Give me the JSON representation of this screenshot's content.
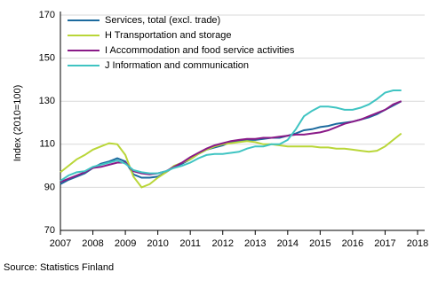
{
  "chart_data": {
    "type": "line",
    "y_label": "Index (2010=100)",
    "source": "Source: Statistics Finland",
    "x": [
      2007,
      2007.25,
      2007.5,
      2007.75,
      2008,
      2008.25,
      2008.5,
      2008.75,
      2009,
      2009.25,
      2009.5,
      2009.75,
      2010,
      2010.25,
      2010.5,
      2010.75,
      2011,
      2011.25,
      2011.5,
      2011.75,
      2012,
      2012.25,
      2012.5,
      2012.75,
      2013,
      2013.25,
      2013.5,
      2013.75,
      2014,
      2014.25,
      2014.5,
      2014.75,
      2015,
      2015.25,
      2015.5,
      2015.75,
      2016,
      2016.25,
      2016.5,
      2016.75,
      2017,
      2017.25,
      2017.5
    ],
    "series": [
      {
        "name": "Services, total (excl. trade)",
        "color": "#1c6a9e",
        "values": [
          91.5,
          93.5,
          95,
          96.5,
          99,
          101,
          102,
          103.5,
          102,
          96,
          94.5,
          94.5,
          95,
          97,
          99.5,
          101,
          103,
          105.5,
          107.5,
          108.5,
          109.5,
          111,
          111.5,
          112,
          112,
          112.5,
          113,
          113,
          114,
          115,
          116.5,
          117,
          118,
          118.5,
          119.5,
          120,
          120.5,
          121.5,
          122.5,
          124,
          126,
          128,
          130
        ]
      },
      {
        "name": "H Transportation and storage",
        "color": "#b9d638",
        "values": [
          97,
          100,
          103,
          105,
          107.5,
          109,
          110.5,
          110,
          105,
          95,
          90,
          91.5,
          94.5,
          97,
          100,
          101.5,
          103,
          105.5,
          107.5,
          109,
          110,
          110.5,
          111,
          111.5,
          111,
          110,
          110,
          109.5,
          109,
          109,
          109,
          109,
          108.5,
          108.5,
          108,
          108,
          107.5,
          107,
          106.5,
          107,
          109,
          112,
          115
        ]
      },
      {
        "name": "I Accommodation and food service activities",
        "color": "#8a1a88",
        "values": [
          92.5,
          94,
          95.5,
          97,
          99,
          99.5,
          100.5,
          101.5,
          101.5,
          97.5,
          96.5,
          96,
          96.5,
          97.5,
          99.5,
          101.5,
          104,
          106,
          108,
          109.5,
          110.5,
          111.5,
          112,
          112.5,
          112.5,
          113,
          113,
          113.5,
          114,
          114.5,
          114.5,
          115,
          115.5,
          116.5,
          118,
          119.5,
          120.5,
          121.5,
          123,
          124.5,
          126,
          128.5,
          130
        ]
      },
      {
        "name": "J Information and communication",
        "color": "#3fc4c2",
        "values": [
          93,
          95.5,
          97,
          97.5,
          99.5,
          100.5,
          101.5,
          102.5,
          101,
          98,
          97,
          96.5,
          96.5,
          97.5,
          99,
          100,
          101.5,
          103.5,
          105,
          105.5,
          105.5,
          106,
          106.5,
          108,
          109,
          109,
          110,
          110,
          112,
          117,
          123,
          125.5,
          127.5,
          127.5,
          127,
          126,
          126,
          127,
          128.5,
          131,
          134,
          135,
          135
        ]
      }
    ],
    "xlim": [
      2007,
      2018
    ],
    "xticks": [
      2007,
      2008,
      2009,
      2010,
      2011,
      2012,
      2013,
      2014,
      2015,
      2016,
      2017,
      2018
    ],
    "ylim": [
      70,
      170
    ],
    "yticks": [
      70,
      90,
      110,
      130,
      150,
      170
    ],
    "grid": true
  }
}
